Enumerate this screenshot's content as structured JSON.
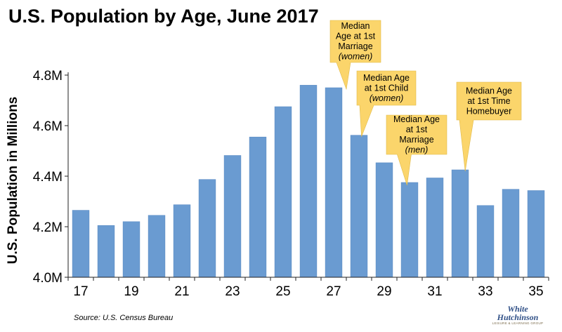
{
  "source_note": "Source: U.S. Census Bureau",
  "logo": {
    "line1": "White",
    "line2": "Hutchinson",
    "line3": "LEISURE & LEARNING GROUP"
  },
  "colors": {
    "bar": "#6a9bd1",
    "bar_stroke": "#5a8bc4",
    "callout_fill": "#fbd56b",
    "axis": "#222222"
  },
  "chart_data": {
    "type": "bar",
    "title": "U.S. Population by Age, June 2017",
    "ylabel": "U.S. Population in Millions",
    "xlabel": "",
    "ylim": [
      4.0,
      4.8
    ],
    "y_ticks": [
      {
        "value": 4.0,
        "label": "4.0M"
      },
      {
        "value": 4.2,
        "label": "4.2M"
      },
      {
        "value": 4.4,
        "label": "4.4M"
      },
      {
        "value": 4.6,
        "label": "4.6M"
      },
      {
        "value": 4.8,
        "label": "4.8M"
      }
    ],
    "x_tick_labels": [
      "17",
      "19",
      "21",
      "23",
      "25",
      "27",
      "29",
      "31",
      "33",
      "35"
    ],
    "categories": [
      17,
      18,
      19,
      20,
      21,
      22,
      23,
      24,
      25,
      26,
      27,
      28,
      29,
      30,
      31,
      32,
      33,
      34,
      35
    ],
    "values": [
      4.265,
      4.205,
      4.22,
      4.245,
      4.287,
      4.387,
      4.482,
      4.555,
      4.675,
      4.76,
      4.75,
      4.562,
      4.453,
      4.375,
      4.393,
      4.425,
      4.284,
      4.348,
      4.343
    ],
    "grid": false,
    "annotations": [
      {
        "age": 27.5,
        "lines": [
          "Median",
          "Age at 1st",
          "Marriage"
        ],
        "italic_line": "(women)"
      },
      {
        "age": 28.1,
        "lines": [
          "Median Age",
          "at 1st Child"
        ],
        "italic_line": "(women)"
      },
      {
        "age": 29.9,
        "lines": [
          "Median Age",
          "at 1st",
          "Marriage"
        ],
        "italic_line": "(men)"
      },
      {
        "age": 32.2,
        "lines": [
          "Median Age",
          "at 1st Time",
          "Homebuyer"
        ],
        "italic_line": ""
      }
    ]
  }
}
